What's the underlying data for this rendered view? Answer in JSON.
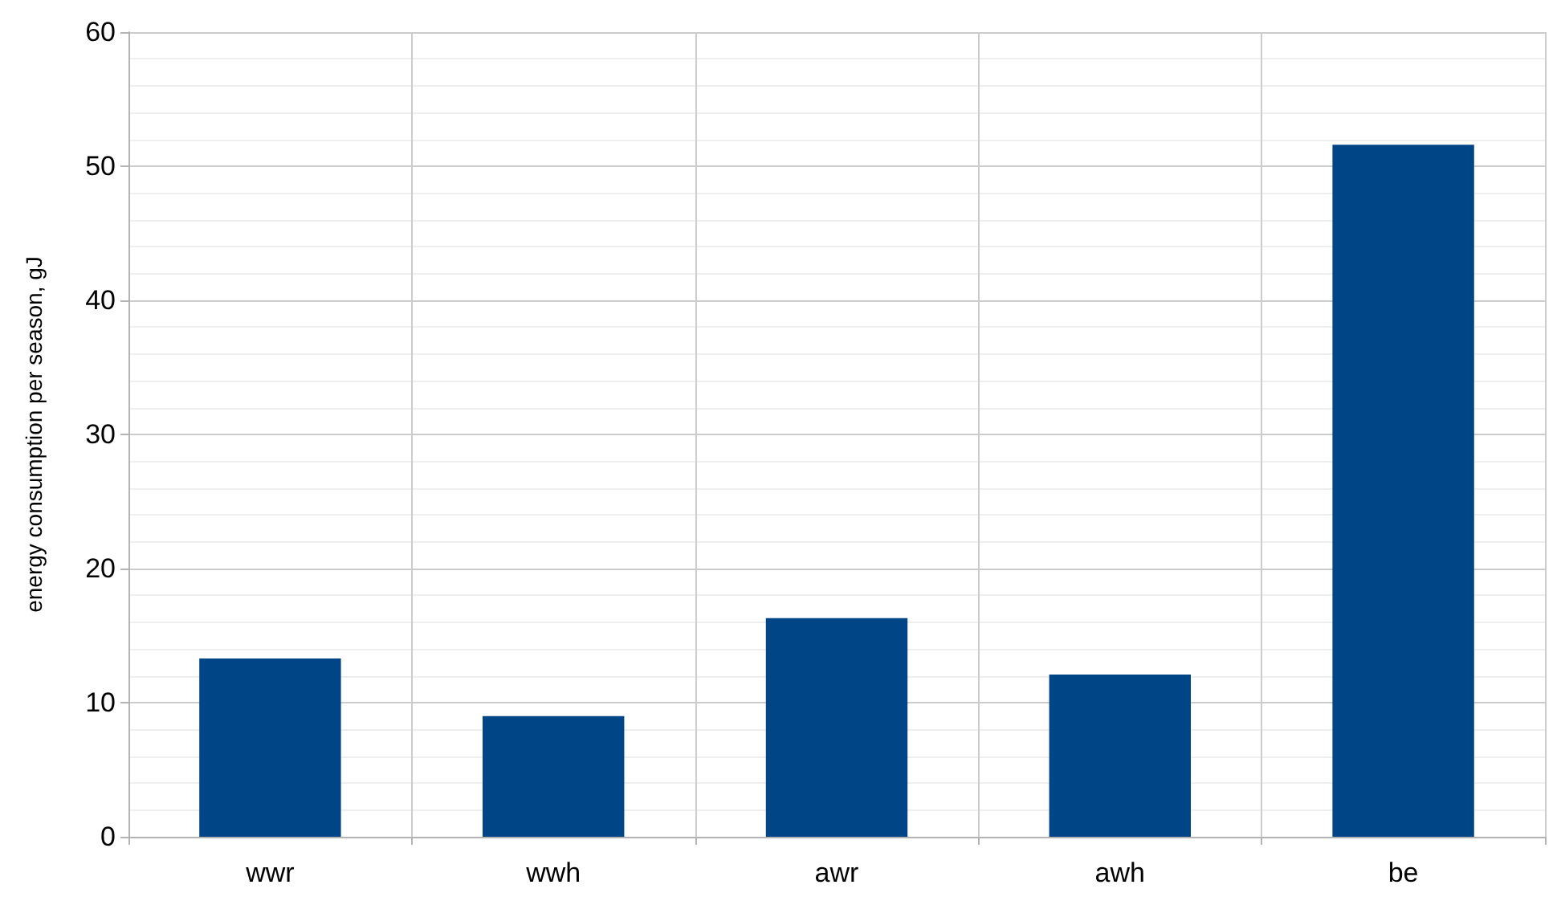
{
  "chart_data": {
    "type": "bar",
    "ylabel": "energy consumption per season, gJ",
    "categories": [
      "wwr",
      "wwh",
      "awr",
      "awh",
      "be"
    ],
    "values": [
      13.3,
      9.0,
      16.3,
      12.1,
      51.6
    ],
    "color": "#004586",
    "ylim": [
      0,
      60
    ],
    "yticks": [
      0,
      10,
      20,
      30,
      40,
      50,
      60
    ],
    "grid": true
  }
}
